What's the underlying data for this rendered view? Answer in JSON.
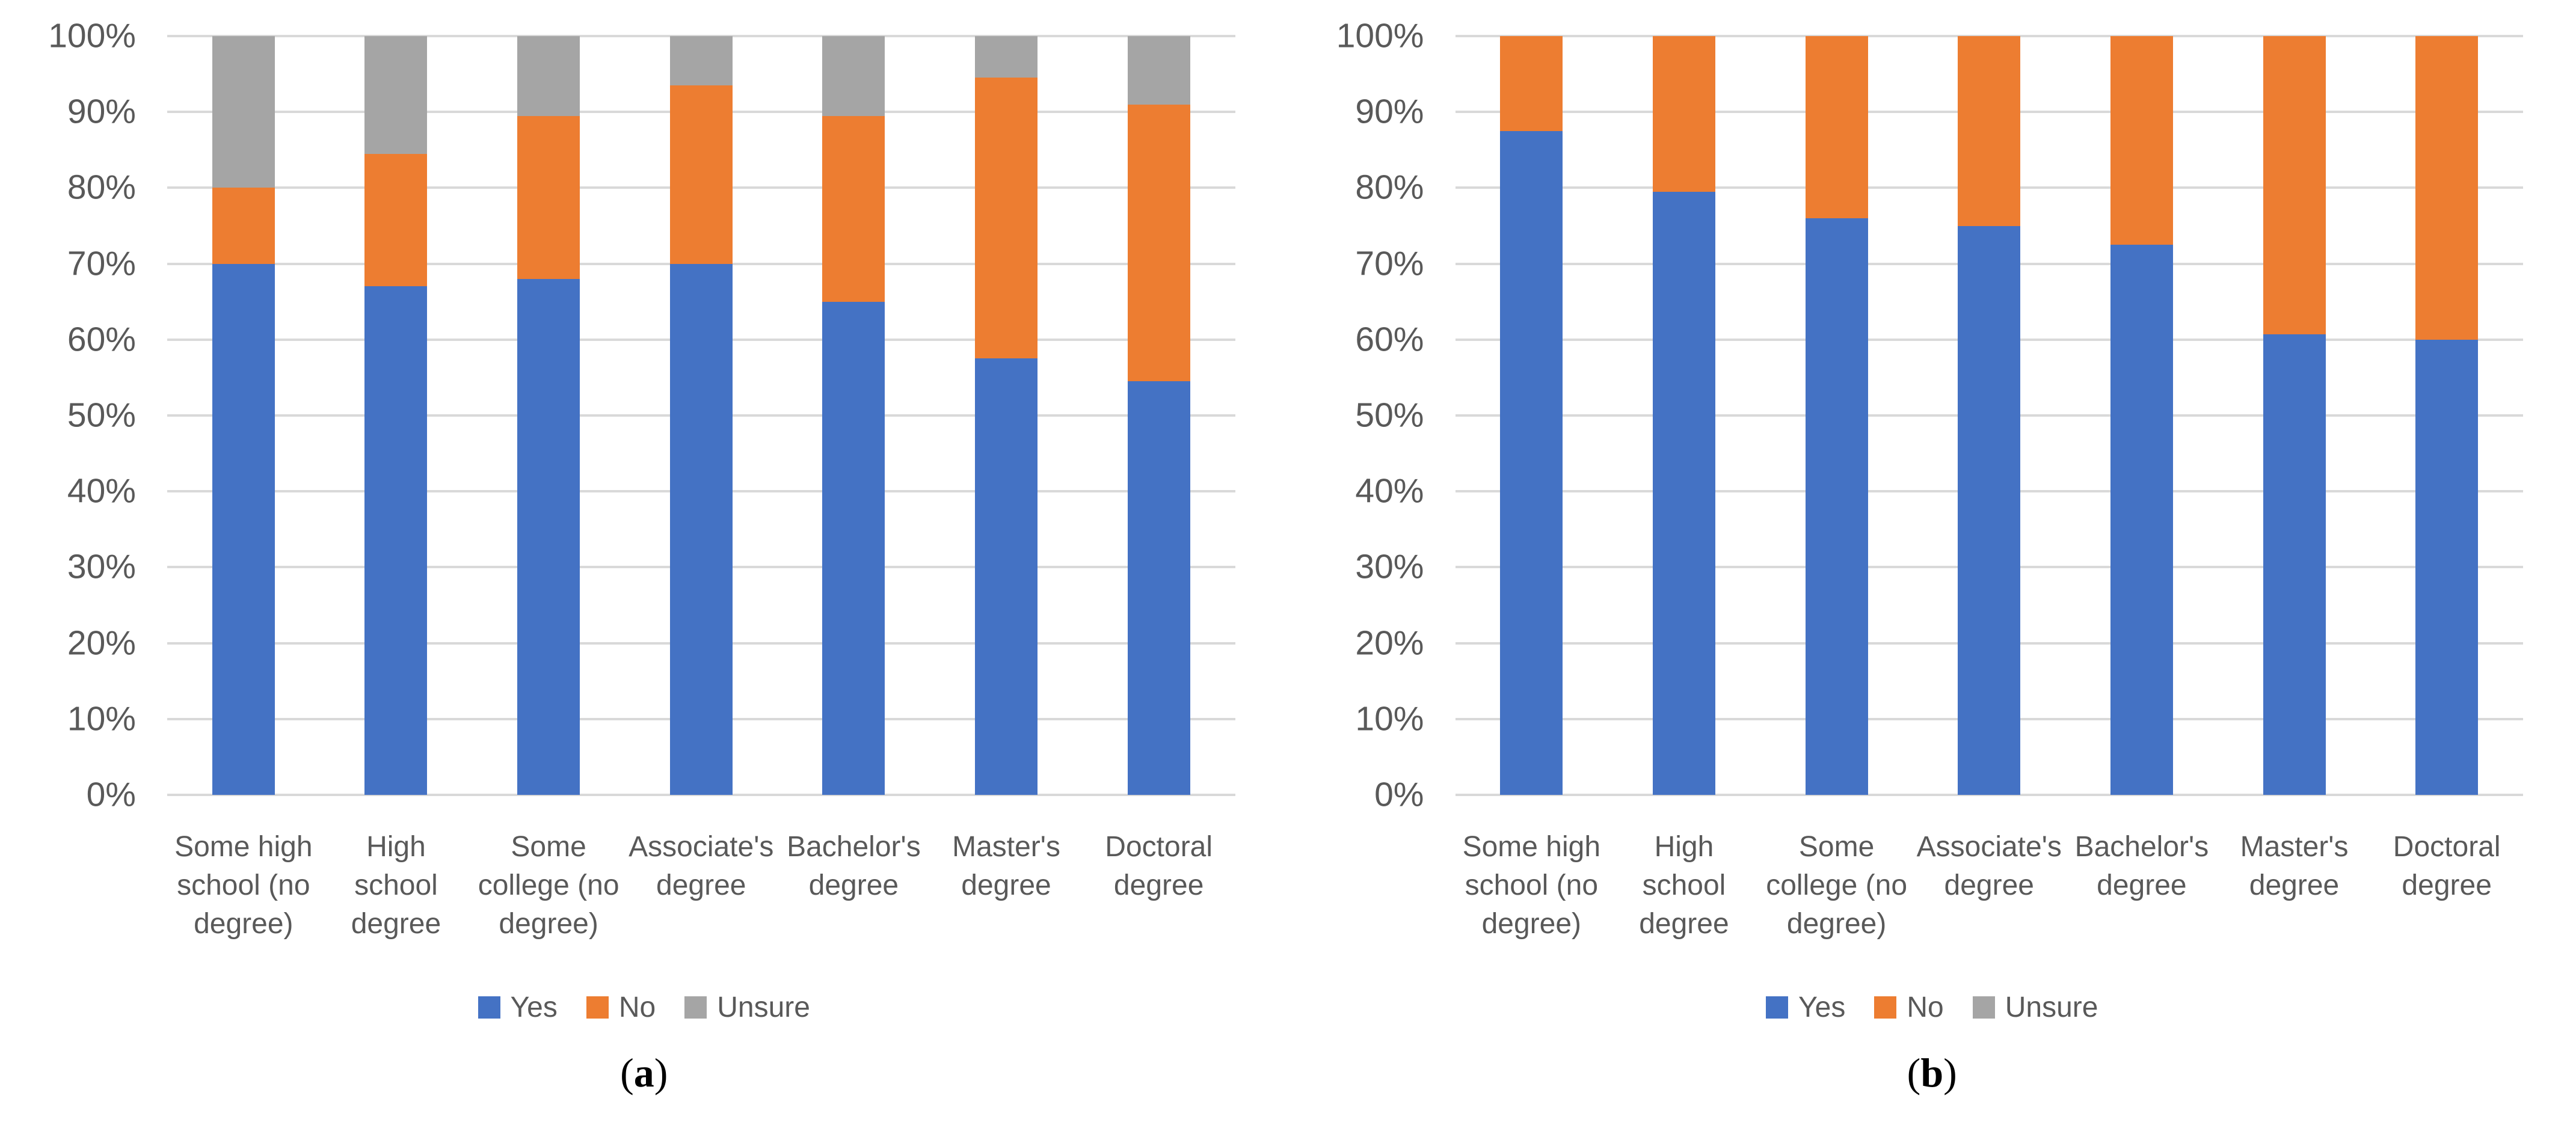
{
  "y_axis": {
    "tick_labels_top_to_bottom": [
      "100%",
      "90%",
      "80%",
      "70%",
      "60%",
      "50%",
      "40%",
      "30%",
      "20%",
      "10%",
      "0%"
    ]
  },
  "legend": {
    "items": [
      {
        "label": "Yes",
        "color": "#4472c4"
      },
      {
        "label": "No",
        "color": "#ed7d31"
      },
      {
        "label": "Unsure",
        "color": "#a5a5a5"
      }
    ]
  },
  "colors": {
    "yes": "#4472c4",
    "no": "#ed7d31",
    "unsure": "#a5a5a5",
    "gridline": "#d9d9d9",
    "axis_text": "#595959",
    "background": "#ffffff"
  },
  "chart_data": [
    {
      "type": "bar",
      "stacked": true,
      "caption": "(a)",
      "caption_letter": "a",
      "grid": true,
      "legend_position": "bottom",
      "ylim": [
        0,
        100
      ],
      "y_tick_labels": [
        "0%",
        "10%",
        "20%",
        "30%",
        "40%",
        "50%",
        "60%",
        "70%",
        "80%",
        "90%",
        "100%"
      ],
      "categories": [
        {
          "label": "Some high school (no degree)",
          "lines": [
            "Some high",
            "school (no",
            "degree)"
          ]
        },
        {
          "label": "High school degree",
          "lines": [
            "High",
            "school",
            "degree"
          ]
        },
        {
          "label": "Some college (no degree)",
          "lines": [
            "Some",
            "college (no",
            "degree)"
          ]
        },
        {
          "label": "Associate's degree",
          "lines": [
            "Associate's",
            "degree"
          ]
        },
        {
          "label": "Bachelor's degree",
          "lines": [
            "Bachelor's",
            "degree"
          ]
        },
        {
          "label": "Master's degree",
          "lines": [
            "Master's",
            "degree"
          ]
        },
        {
          "label": "Doctoral degree",
          "lines": [
            "Doctoral",
            "degree"
          ]
        }
      ],
      "series": [
        {
          "name": "Yes",
          "color": "#4472c4",
          "values": [
            70,
            67,
            68,
            70,
            65,
            57.5,
            54.5
          ]
        },
        {
          "name": "No",
          "color": "#ed7d31",
          "values": [
            10,
            17.5,
            21.5,
            23.5,
            24.5,
            37,
            36.5
          ]
        },
        {
          "name": "Unsure",
          "color": "#a5a5a5",
          "values": [
            20,
            15.5,
            10.5,
            6.5,
            10.5,
            5.5,
            9
          ]
        }
      ]
    },
    {
      "type": "bar",
      "stacked": true,
      "caption": "(b)",
      "caption_letter": "b",
      "grid": true,
      "legend_position": "bottom",
      "ylim": [
        0,
        100
      ],
      "y_tick_labels": [
        "0%",
        "10%",
        "20%",
        "30%",
        "40%",
        "50%",
        "60%",
        "70%",
        "80%",
        "90%",
        "100%"
      ],
      "categories": [
        {
          "label": "Some high school (no degree)",
          "lines": [
            "Some high",
            "school (no",
            "degree)"
          ]
        },
        {
          "label": "High school degree",
          "lines": [
            "High",
            "school",
            "degree"
          ]
        },
        {
          "label": "Some college (no degree)",
          "lines": [
            "Some",
            "college (no",
            "degree)"
          ]
        },
        {
          "label": "Associate's degree",
          "lines": [
            "Associate's",
            "degree"
          ]
        },
        {
          "label": "Bachelor's degree",
          "lines": [
            "Bachelor's",
            "degree"
          ]
        },
        {
          "label": "Master's degree",
          "lines": [
            "Master's",
            "degree"
          ]
        },
        {
          "label": "Doctoral degree",
          "lines": [
            "Doctoral",
            "degree"
          ]
        }
      ],
      "series": [
        {
          "name": "Yes",
          "color": "#4472c4",
          "values": [
            87.5,
            79.5,
            76,
            75,
            72.5,
            60.7,
            60
          ]
        },
        {
          "name": "No",
          "color": "#ed7d31",
          "values": [
            12.5,
            20.5,
            24,
            25,
            27.5,
            39.3,
            40
          ]
        },
        {
          "name": "Unsure",
          "color": "#a5a5a5",
          "values": [
            0,
            0,
            0,
            0,
            0,
            0,
            0
          ]
        }
      ]
    }
  ]
}
